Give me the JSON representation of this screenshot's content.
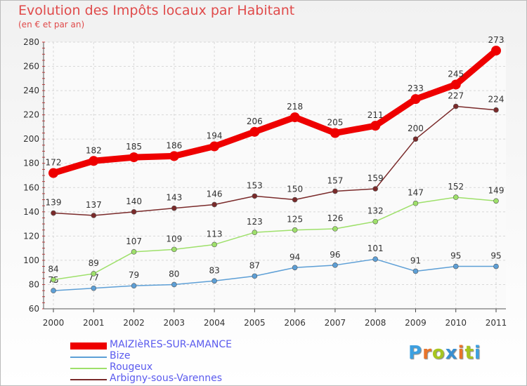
{
  "header": {
    "title": "Evolution des Impôts locaux par Habitant",
    "subtitle": "(en € et par an)"
  },
  "brand": {
    "letters": [
      "P",
      "r",
      "o",
      "x",
      "i",
      "t",
      "i"
    ],
    "colors": [
      "#3da0e0",
      "#e8742a",
      "#a7c520",
      "#3a8fd0",
      "#e8742a",
      "#a7c520",
      "#3da0e0"
    ]
  },
  "chart_data": {
    "type": "line",
    "title": "Evolution des Impôts locaux par Habitant",
    "subtitle": "(en € et par an)",
    "x": [
      "2000",
      "2001",
      "2002",
      "2003",
      "2004",
      "2005",
      "2006",
      "2007",
      "2008",
      "2009",
      "2010",
      "2011"
    ],
    "ylim": [
      60,
      280
    ],
    "yticks": [
      60,
      80,
      100,
      120,
      140,
      160,
      180,
      200,
      220,
      240,
      260,
      280
    ],
    "grid": true,
    "legend_position": "bottom-left",
    "series": [
      {
        "name": "MAIZIèRES-SUR-AMANCE",
        "color": "#ee0000",
        "values": [
          172,
          182,
          185,
          186,
          194,
          206,
          218,
          205,
          211,
          233,
          245,
          273
        ]
      },
      {
        "name": "Bize",
        "color": "#5d9fd6",
        "values": [
          75,
          77,
          79,
          80,
          83,
          87,
          94,
          96,
          101,
          91,
          95,
          95
        ]
      },
      {
        "name": "Rougeux",
        "color": "#9ee06a",
        "values": [
          84,
          89,
          107,
          109,
          113,
          123,
          125,
          126,
          132,
          147,
          152,
          149
        ]
      },
      {
        "name": "Arbigny-sous-Varennes",
        "color": "#7a2a2a",
        "values": [
          139,
          137,
          140,
          143,
          146,
          153,
          150,
          157,
          159,
          200,
          227,
          224
        ]
      }
    ]
  }
}
